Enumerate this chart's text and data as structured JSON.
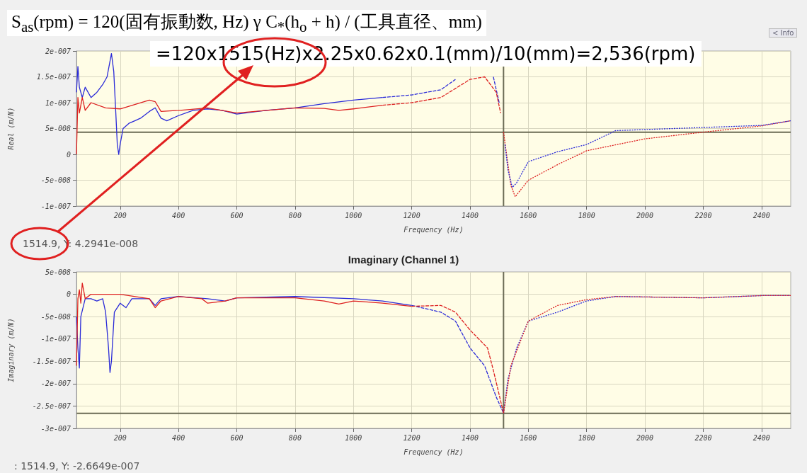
{
  "chart_data": [
    {
      "type": "line",
      "ylabel": "Real (m/N)",
      "xlabel": "Frequency (Hz)",
      "annotations": [
        "S$_{as}$(rpm) = 120(固有振動数, Hz)  γ  C$_{*}$(h$_{o}$ + h) / (工具直径、mm)",
        "=120x1515(Hz)x2.25x0.62x0.1(mm)/10(mm)=2,536(rpm)",
        "< Info",
        "1514.9, Y: 4.2941e-008"
      ],
      "xlim": [
        50,
        2500
      ],
      "xticks": [
        200,
        400,
        600,
        800,
        1000,
        1200,
        1400,
        1600,
        1800,
        2000,
        2200,
        2400
      ],
      "ylim": [
        -1e-07,
        2e-07
      ],
      "yticks": [
        {
          "value": 2e-07,
          "label": "2e-007"
        },
        {
          "value": 1.5e-07,
          "label": "1.5e-007"
        },
        {
          "value": 1e-07,
          "label": "1e-007"
        },
        {
          "value": 5e-08,
          "label": "5e-008"
        },
        0,
        {
          "value": -5e-08,
          "label": "-5e-008"
        },
        {
          "value": -1e-07,
          "label": "-1e-007"
        }
      ],
      "grid": true,
      "marker": "none",
      "ref_lines": [
        {
          "axis": "x",
          "value": 1514.9,
          "color": "#6b6b55"
        },
        {
          "axis": "y",
          "value": 4.2941e-08,
          "color": "#6b6b55"
        }
      ],
      "series": [
        {
          "color": "#2a2ad8",
          "line_style": "solid",
          "x": [
            50,
            55,
            60,
            70,
            80,
            100,
            120,
            140,
            155,
            165,
            170,
            178,
            185,
            190,
            195,
            200,
            210,
            230,
            250,
            270,
            300,
            320,
            340,
            360,
            400,
            450,
            500,
            550,
            600,
            700,
            800,
            900,
            1000,
            1100
          ],
          "values": [
            1.2e-07,
            1.7e-07,
            1.3e-07,
            1.1e-07,
            1.3e-07,
            1.1e-07,
            1.2e-07,
            1.35e-07,
            1.5e-07,
            1.8e-07,
            1.95e-07,
            1.6e-07,
            8e-08,
            2e-08,
            0,
            2e-08,
            5e-08,
            6e-08,
            6.5e-08,
            7e-08,
            8.3e-08,
            9e-08,
            7e-08,
            6.5e-08,
            7.5e-08,
            8.5e-08,
            8.8e-08,
            8.5e-08,
            7.8e-08,
            8.5e-08,
            9e-08,
            9.8e-08,
            1.05e-07,
            1.1e-07
          ]
        },
        {
          "color": "#2a2ad8",
          "line_style": "dashed",
          "x": [
            1100,
            1200,
            1300,
            1350,
            1400,
            1450,
            1480,
            1500
          ],
          "values": [
            1.1e-07,
            1.15e-07,
            1.25e-07,
            1.45e-07,
            null,
            null,
            1.5e-07,
            1e-07
          ]
        },
        {
          "color": "#dd2020",
          "line_style": "solid",
          "x": [
            50,
            55,
            60,
            70,
            80,
            100,
            150,
            200,
            300,
            320,
            340,
            400,
            500,
            600,
            800,
            900,
            950,
            1000,
            1100
          ],
          "values": [
            0,
            1.1e-07,
            8e-08,
            1.1e-07,
            8.5e-08,
            1e-07,
            9e-08,
            8.8e-08,
            1.05e-07,
            1.02e-07,
            8.3e-08,
            8.5e-08,
            9e-08,
            8e-08,
            9e-08,
            8.9e-08,
            8.5e-08,
            8.8e-08,
            9.5e-08
          ]
        },
        {
          "color": "#dd2020",
          "line_style": "dashed",
          "x": [
            1100,
            1200,
            1300,
            1400,
            1450,
            1490,
            1505
          ],
          "values": [
            9.5e-08,
            1e-07,
            1.1e-07,
            1.45e-07,
            1.5e-07,
            1.2e-07,
            8e-08
          ]
        },
        {
          "color": "#dd2020",
          "line_style": "dotted",
          "x": [
            1515,
            1540,
            1555,
            1600,
            1700,
            1800,
            2000,
            2200,
            2400,
            2500
          ],
          "values": [
            4.3e-08,
            -6e-08,
            -8.2e-08,
            -5e-08,
            -2e-08,
            7e-09,
            3e-08,
            4.3e-08,
            5.5e-08,
            6.5e-08
          ]
        },
        {
          "color": "#2a2ad8",
          "line_style": "dotted",
          "x": [
            1520,
            1530,
            1545,
            1560,
            1600,
            1700,
            1800,
            1900,
            2000,
            2200,
            2400,
            2500
          ],
          "values": [
            1.9e-08,
            -3e-08,
            -6.4e-08,
            -5.5e-08,
            -1.4e-08,
            5e-09,
            1.9e-08,
            4.6e-08,
            4.8e-08,
            5.2e-08,
            5.6e-08,
            6.5e-08
          ]
        }
      ]
    },
    {
      "type": "line",
      "title": "Imaginary (Channel 1)",
      "ylabel": "Imaginary (m/N)",
      "xlabel": "Frequency (Hz)",
      "annotations": [
        ": 1514.9, Y: -2.6649e-007"
      ],
      "xlim": [
        50,
        2500
      ],
      "xticks": [
        200,
        400,
        600,
        800,
        1000,
        1200,
        1400,
        1600,
        1800,
        2000,
        2200,
        2400
      ],
      "ylim": [
        -3e-07,
        5e-08
      ],
      "yticks": [
        {
          "value": 5e-08,
          "label": "5e-008"
        },
        0,
        {
          "value": -5e-08,
          "label": "-5e-008"
        },
        {
          "value": -1e-07,
          "label": "-1e-007"
        },
        {
          "value": -1.5e-07,
          "label": "-1.5e-007"
        },
        {
          "value": -2e-07,
          "label": "-2e-007"
        },
        {
          "value": -2.5e-07,
          "label": "-2.5e-007"
        },
        {
          "value": -3e-07,
          "label": "-3e-007"
        }
      ],
      "grid": true,
      "marker": "none",
      "ref_lines": [
        {
          "axis": "x",
          "value": 1514.9,
          "color": "#6b6b55"
        },
        {
          "axis": "y",
          "value": -2.6649e-07,
          "color": "#6b6b55"
        }
      ],
      "series": [
        {
          "color": "#2a2ad8",
          "line_style": "solid",
          "x": [
            50,
            55,
            60,
            65,
            80,
            100,
            120,
            140,
            150,
            160,
            165,
            170,
            180,
            200,
            220,
            240,
            300,
            320,
            340,
            400,
            500,
            560,
            600,
            800,
            1000,
            1100,
            1200
          ],
          "values": [
            -5e-08,
            -1.2e-07,
            -1.65e-07,
            -5e-08,
            -1e-08,
            -1e-08,
            -1.5e-08,
            -1e-08,
            -4e-08,
            -1.2e-07,
            -1.75e-07,
            -1.5e-07,
            -4e-08,
            -2e-08,
            -3e-08,
            -1e-08,
            -1e-08,
            -2.5e-08,
            -1e-08,
            -5e-09,
            -1e-08,
            -1.5e-08,
            -8e-09,
            -5e-09,
            -1e-08,
            -1.5e-08,
            -2.5e-08
          ]
        },
        {
          "color": "#2a2ad8",
          "line_style": "dashed",
          "x": [
            1200,
            1300,
            1350,
            1400,
            1450,
            1490,
            1515
          ],
          "values": [
            -2.5e-08,
            -4e-08,
            -6e-08,
            -1.2e-07,
            -1.6e-07,
            -2.3e-07,
            -2.66e-07
          ]
        },
        {
          "color": "#2a2ad8",
          "line_style": "dotted",
          "x": [
            1515,
            1530,
            1560,
            1600,
            1700,
            1800,
            1900,
            2000,
            2200,
            2400,
            2500
          ],
          "values": [
            -2.66e-07,
            -1.9e-07,
            -1.2e-07,
            -6e-08,
            -4e-08,
            -1.5e-08,
            -5e-09,
            -6e-09,
            -8e-09,
            -3e-09,
            -3e-09
          ]
        },
        {
          "color": "#dd2020",
          "line_style": "solid",
          "x": [
            50,
            55,
            60,
            65,
            70,
            80,
            100,
            150,
            200,
            300,
            320,
            340,
            400,
            480,
            500,
            560,
            600,
            800,
            900,
            950,
            1000,
            1100,
            1200
          ],
          "values": [
            -1.6e-07,
            -1e-08,
            1e-08,
            -2e-08,
            2.5e-08,
            -1e-08,
            0,
            0,
            0,
            -1e-08,
            -3e-08,
            -1.5e-08,
            -5e-09,
            -1e-08,
            -2e-08,
            -1.5e-08,
            -8e-09,
            -8e-09,
            -1.5e-08,
            -2.2e-08,
            -1.5e-08,
            -2e-08,
            -2.7e-08
          ]
        },
        {
          "color": "#dd2020",
          "line_style": "dashed",
          "x": [
            1200,
            1300,
            1350,
            1400,
            1460,
            1480,
            1515
          ],
          "values": [
            -2.7e-08,
            -2.5e-08,
            -4e-08,
            -8e-08,
            -1.2e-07,
            -1.7e-07,
            -2.66e-07
          ]
        },
        {
          "color": "#dd2020",
          "line_style": "dotted",
          "x": [
            1515,
            1540,
            1600,
            1700,
            1800,
            1900,
            2200,
            2400,
            2500
          ],
          "values": [
            -2.66e-07,
            -1.6e-07,
            -6e-08,
            -2.5e-08,
            -1.2e-08,
            -5e-09,
            -8e-09,
            -3e-09,
            -3e-09
          ]
        }
      ]
    }
  ]
}
